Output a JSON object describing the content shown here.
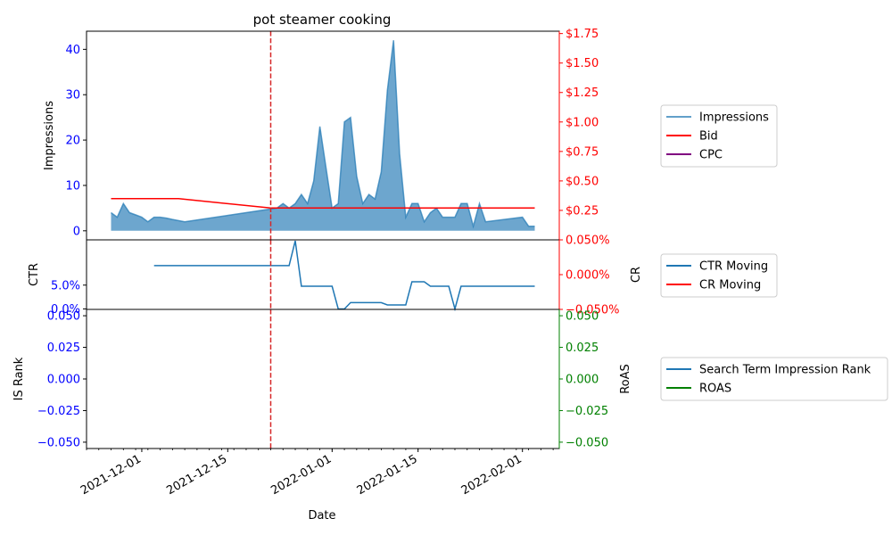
{
  "chart_data": [
    {
      "panel": "top",
      "type": "area",
      "title": "pot steamer cooking",
      "ylabel": "Impressions",
      "ylabel_right": "",
      "ylim": [
        -2,
        44
      ],
      "yticks": [
        0,
        10,
        20,
        30,
        40
      ],
      "y2lim": [
        0,
        1.77
      ],
      "y2ticks": [
        0.25,
        0.5,
        0.75,
        1.0,
        1.25,
        1.5,
        1.75
      ],
      "y2tick_labels": [
        "$0.25",
        "$0.50",
        "$0.75",
        "$1.00",
        "$1.25",
        "$1.50",
        "$1.75"
      ],
      "series": [
        {
          "name": "Impressions",
          "axis": "left",
          "color": "#1f77b4",
          "points": [
            [
              "2021-11-26",
              4
            ],
            [
              "2021-11-27",
              3
            ],
            [
              "2021-11-28",
              6
            ],
            [
              "2021-11-29",
              4
            ],
            [
              "2021-11-30",
              3.5
            ],
            [
              "2021-12-01",
              3
            ],
            [
              "2021-12-02",
              2
            ],
            [
              "2021-12-03",
              3
            ],
            [
              "2021-12-04",
              3
            ],
            [
              "2021-12-05",
              2.8
            ],
            [
              "2021-12-06",
              2.5
            ],
            [
              "2021-12-08",
              2
            ],
            [
              "2021-12-22",
              4.8
            ],
            [
              "2021-12-23",
              5
            ],
            [
              "2021-12-24",
              6
            ],
            [
              "2021-12-25",
              5
            ],
            [
              "2021-12-26",
              6
            ],
            [
              "2021-12-27",
              8
            ],
            [
              "2021-12-28",
              6
            ],
            [
              "2021-12-29",
              11
            ],
            [
              "2021-12-30",
              23
            ],
            [
              "2021-12-31",
              14
            ],
            [
              "2022-01-01",
              5
            ],
            [
              "2022-01-02",
              6
            ],
            [
              "2022-01-03",
              24
            ],
            [
              "2022-01-04",
              25
            ],
            [
              "2022-01-05",
              12
            ],
            [
              "2022-01-06",
              6
            ],
            [
              "2022-01-07",
              8
            ],
            [
              "2022-01-08",
              7
            ],
            [
              "2022-01-09",
              13
            ],
            [
              "2022-01-10",
              31
            ],
            [
              "2022-01-11",
              42
            ],
            [
              "2022-01-12",
              17
            ],
            [
              "2022-01-13",
              3
            ],
            [
              "2022-01-14",
              6
            ],
            [
              "2022-01-15",
              6
            ],
            [
              "2022-01-16",
              2
            ],
            [
              "2022-01-17",
              4
            ],
            [
              "2022-01-18",
              5
            ],
            [
              "2022-01-19",
              3
            ],
            [
              "2022-01-20",
              3
            ],
            [
              "2022-01-21",
              3
            ],
            [
              "2022-01-22",
              6
            ],
            [
              "2022-01-23",
              6
            ],
            [
              "2022-01-24",
              1
            ],
            [
              "2022-01-25",
              6
            ],
            [
              "2022-01-26",
              2
            ],
            [
              "2022-02-01",
              3
            ],
            [
              "2022-02-02",
              1
            ],
            [
              "2022-02-03",
              1
            ]
          ]
        },
        {
          "name": "Bid",
          "axis": "right",
          "color": "#ff0000",
          "points": [
            [
              "2021-11-26",
              0.35
            ],
            [
              "2021-12-07",
              0.35
            ],
            [
              "2021-12-22",
              0.27
            ],
            [
              "2022-02-03",
              0.27
            ]
          ]
        },
        {
          "name": "CPC",
          "axis": "right",
          "color": "#800080",
          "points": []
        }
      ],
      "vline": {
        "x": "2021-12-22",
        "color": "#d62728"
      },
      "legend": [
        "Impressions",
        "Bid",
        "CPC"
      ]
    },
    {
      "panel": "middle",
      "type": "line",
      "ylabel": "CTR",
      "ylabel_right": "CR",
      "ylim": [
        -0.001,
        0.145
      ],
      "yticks": [
        0.0,
        0.05
      ],
      "ytick_labels": [
        "0.0%",
        "5.0%"
      ],
      "y2lim": [
        -0.0005,
        0.0005
      ],
      "y2ticks": [
        -0.0005,
        0.0,
        0.0005
      ],
      "y2tick_labels": [
        "−0.050%",
        "0.000%",
        "0.050%"
      ],
      "series": [
        {
          "name": "CTR Moving",
          "axis": "left",
          "color": "#1f77b4",
          "points": [
            [
              "2021-12-03",
              0.0909
            ],
            [
              "2021-12-25",
              0.0909
            ],
            [
              "2021-12-26",
              0.1429
            ],
            [
              "2021-12-27",
              0.0476
            ],
            [
              "2022-01-01",
              0.0476
            ],
            [
              "2022-01-02",
              0.0
            ],
            [
              "2022-01-03",
              0.0
            ],
            [
              "2022-01-04",
              0.0133
            ],
            [
              "2022-01-09",
              0.0133
            ],
            [
              "2022-01-10",
              0.0083
            ],
            [
              "2022-01-13",
              0.0083
            ],
            [
              "2022-01-14",
              0.0571
            ],
            [
              "2022-01-16",
              0.0571
            ],
            [
              "2022-01-17",
              0.0476
            ],
            [
              "2022-01-20",
              0.0476
            ],
            [
              "2022-01-21",
              0.0
            ],
            [
              "2022-01-22",
              0.0476
            ],
            [
              "2022-02-03",
              0.0476
            ]
          ]
        },
        {
          "name": "CR Moving",
          "axis": "right",
          "color": "#ff0000",
          "points": []
        }
      ],
      "vline": {
        "x": "2021-12-22",
        "color": "#d62728"
      },
      "legend": [
        "CTR Moving",
        "CR Moving"
      ]
    },
    {
      "panel": "bottom",
      "type": "line",
      "ylabel": "IS Rank",
      "ylabel_right": "RoAS",
      "xlabel": "Date",
      "ylim": [
        -0.055,
        0.055
      ],
      "yticks": [
        -0.05,
        -0.025,
        0.0,
        0.025,
        0.05
      ],
      "ytick_labels": [
        "−0.050",
        "−0.025",
        "0.000",
        "0.025",
        "0.050"
      ],
      "y2lim": [
        -0.055,
        0.055
      ],
      "y2ticks": [
        -0.05,
        -0.025,
        0.0,
        0.025,
        0.05
      ],
      "y2tick_labels": [
        "−0.050",
        "−0.025",
        "0.000",
        "0.025",
        "0.050"
      ],
      "xlim": [
        "2021-11-22",
        "2022-02-07"
      ],
      "xticks": [
        "2021-12-01",
        "2021-12-15",
        "2022-01-01",
        "2022-01-15",
        "2022-02-01"
      ],
      "series": [
        {
          "name": "Search Term Impression Rank",
          "axis": "left",
          "color": "#1f77b4",
          "points": []
        },
        {
          "name": "ROAS",
          "axis": "right",
          "color": "#008000",
          "points": []
        }
      ],
      "vline": {
        "x": "2021-12-22",
        "color": "#d62728"
      },
      "legend": [
        "Search Term Impression Rank",
        "ROAS"
      ]
    }
  ],
  "colors": {
    "left_axis_text": "#0000ff",
    "right_axis_text_top": "#ff0000",
    "right_axis_text_middle": "#ff0000",
    "right_axis_text_bottom": "#008000",
    "area_fill": "#1f77b4"
  }
}
